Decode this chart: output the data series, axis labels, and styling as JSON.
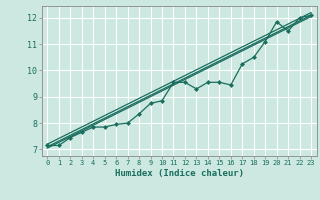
{
  "title": "",
  "xlabel": "Humidex (Indice chaleur)",
  "xlim": [
    -0.5,
    23.5
  ],
  "ylim": [
    6.75,
    12.45
  ],
  "xticks": [
    0,
    1,
    2,
    3,
    4,
    5,
    6,
    7,
    8,
    9,
    10,
    11,
    12,
    13,
    14,
    15,
    16,
    17,
    18,
    19,
    20,
    21,
    22,
    23
  ],
  "yticks": [
    7,
    8,
    9,
    10,
    11,
    12
  ],
  "bg_color": "#cce8e0",
  "grid_color": "#ffffff",
  "line_color": "#1a6e5e",
  "data_x": [
    0,
    1,
    2,
    3,
    4,
    5,
    6,
    7,
    8,
    9,
    10,
    11,
    12,
    13,
    14,
    15,
    16,
    17,
    18,
    19,
    20,
    21,
    22,
    23
  ],
  "data_y": [
    7.15,
    7.15,
    7.45,
    7.65,
    7.85,
    7.85,
    7.95,
    8.0,
    8.35,
    8.75,
    8.85,
    9.55,
    9.55,
    9.3,
    9.55,
    9.55,
    9.45,
    10.25,
    10.5,
    11.1,
    11.85,
    11.5,
    12.0,
    12.1
  ],
  "reg_lines": [
    {
      "x0": 0,
      "y0": 7.1,
      "x1": 23,
      "y1": 12.1
    },
    {
      "x0": 0,
      "y0": 7.05,
      "x1": 23,
      "y1": 12.05
    },
    {
      "x0": 0,
      "y0": 7.2,
      "x1": 23,
      "y1": 12.2
    }
  ]
}
